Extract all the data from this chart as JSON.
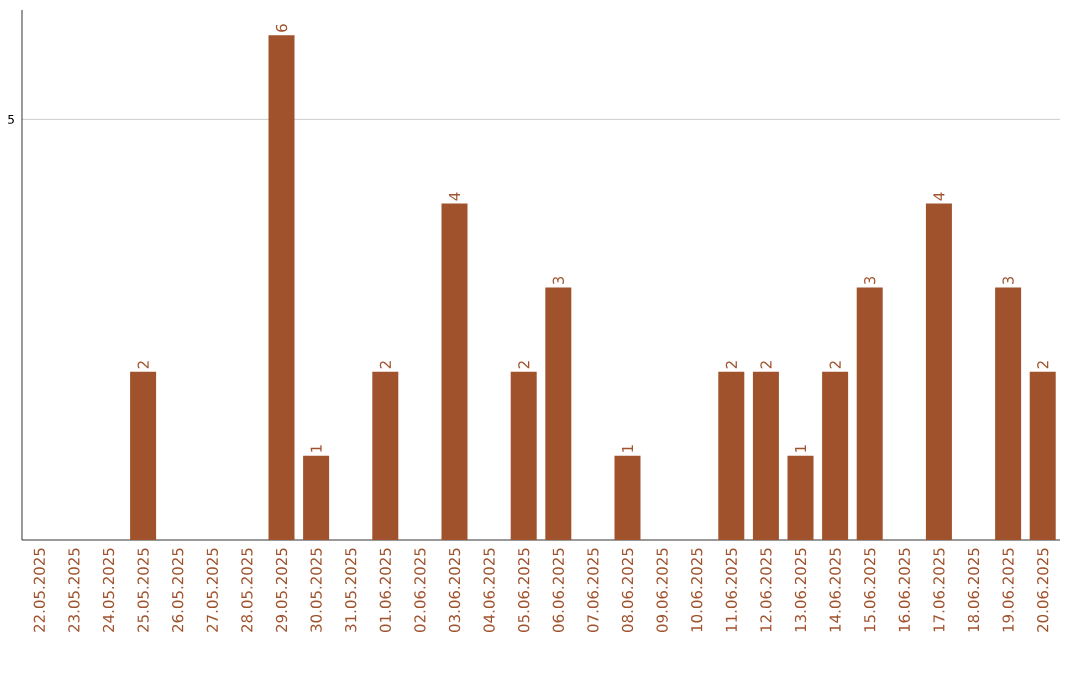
{
  "chart_data": {
    "type": "bar",
    "categories": [
      "22.05.2025",
      "23.05.2025",
      "24.05.2025",
      "25.05.2025",
      "26.05.2025",
      "27.05.2025",
      "28.05.2025",
      "29.05.2025",
      "30.05.2025",
      "31.05.2025",
      "01.06.2025",
      "02.06.2025",
      "03.06.2025",
      "04.06.2025",
      "05.06.2025",
      "06.06.2025",
      "07.06.2025",
      "08.06.2025",
      "09.06.2025",
      "10.06.2025",
      "11.06.2025",
      "12.06.2025",
      "13.06.2025",
      "14.06.2025",
      "15.06.2025",
      "16.06.2025",
      "17.06.2025",
      "18.06.2025",
      "19.06.2025",
      "20.06.2025"
    ],
    "values": [
      0,
      0,
      0,
      2,
      0,
      0,
      0,
      6,
      1,
      0,
      2,
      0,
      4,
      0,
      2,
      3,
      0,
      1,
      0,
      0,
      2,
      2,
      1,
      2,
      3,
      0,
      4,
      0,
      3,
      2
    ],
    "value_labels": [
      null,
      null,
      null,
      "2",
      null,
      null,
      null,
      "6",
      "1",
      null,
      "2",
      null,
      "4",
      null,
      "2",
      "3",
      null,
      "1",
      null,
      null,
      "2",
      "2",
      "1",
      "2",
      "3",
      null,
      "4",
      null,
      "3",
      "2"
    ],
    "color": "#a0522d",
    "ylim": [
      0,
      6.3
    ],
    "yticks": [
      5
    ],
    "grid": "y"
  }
}
